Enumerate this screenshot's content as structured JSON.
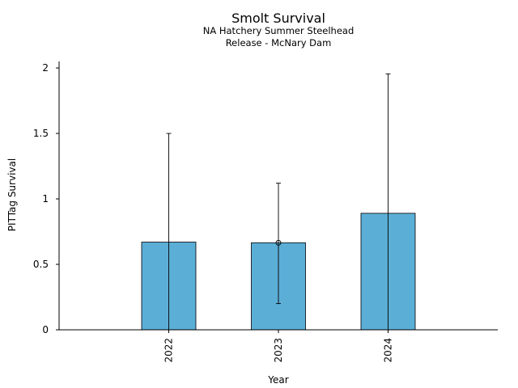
{
  "chart_data": {
    "type": "bar",
    "title": "Smolt Survival",
    "subtitle_lines": [
      "NA Hatchery Summer Steelhead",
      "Release - McNary Dam"
    ],
    "xlabel": "Year",
    "ylabel": "PITTag Survival",
    "categories": [
      "2022",
      "2023",
      "2024"
    ],
    "values": [
      0.67,
      0.665,
      0.89
    ],
    "error_bars": [
      {
        "low": 0.0,
        "high": 1.5,
        "center_marker": false
      },
      {
        "low": 0.2,
        "high": 1.12,
        "center_marker": true
      },
      {
        "low": 0.0,
        "high": 1.955,
        "center_marker": false
      }
    ],
    "ylim": [
      0,
      2.05
    ],
    "yticks": [
      0,
      0.5,
      1,
      1.5,
      2
    ],
    "ytick_labels": [
      "0",
      "0.5",
      "1",
      "1.5",
      "2"
    ],
    "xtick_rotation": "vertical",
    "bar_color": "#5BAED6",
    "grid": false,
    "legend": "none"
  }
}
